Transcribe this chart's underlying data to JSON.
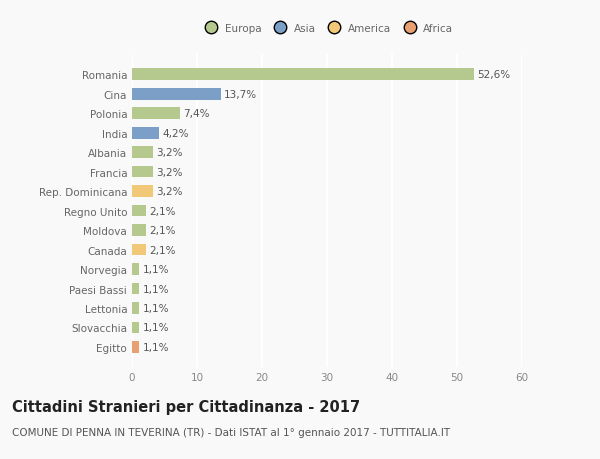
{
  "countries": [
    "Romania",
    "Cina",
    "Polonia",
    "India",
    "Albania",
    "Francia",
    "Rep. Dominicana",
    "Regno Unito",
    "Moldova",
    "Canada",
    "Norvegia",
    "Paesi Bassi",
    "Lettonia",
    "Slovacchia",
    "Egitto"
  ],
  "values": [
    52.6,
    13.7,
    7.4,
    4.2,
    3.2,
    3.2,
    3.2,
    2.1,
    2.1,
    2.1,
    1.1,
    1.1,
    1.1,
    1.1,
    1.1
  ],
  "labels": [
    "52,6%",
    "13,7%",
    "7,4%",
    "4,2%",
    "3,2%",
    "3,2%",
    "3,2%",
    "2,1%",
    "2,1%",
    "2,1%",
    "1,1%",
    "1,1%",
    "1,1%",
    "1,1%",
    "1,1%"
  ],
  "colors": [
    "#b5c98e",
    "#7b9fc7",
    "#b5c98e",
    "#7b9fc7",
    "#b5c98e",
    "#b5c98e",
    "#f0c878",
    "#b5c98e",
    "#b5c98e",
    "#f0c878",
    "#b5c98e",
    "#b5c98e",
    "#b5c98e",
    "#b5c98e",
    "#e8a070"
  ],
  "legend_labels": [
    "Europa",
    "Asia",
    "America",
    "Africa"
  ],
  "legend_colors": [
    "#b5c98e",
    "#7b9fc7",
    "#f0c878",
    "#e8a070"
  ],
  "xlim": [
    0,
    60
  ],
  "xticks": [
    0,
    10,
    20,
    30,
    40,
    50,
    60
  ],
  "title": "Cittadini Stranieri per Cittadinanza - 2017",
  "subtitle": "COMUNE DI PENNA IN TEVERINA (TR) - Dati ISTAT al 1° gennaio 2017 - TUTTITALIA.IT",
  "background_color": "#f9f9f9",
  "grid_color": "#ffffff",
  "bar_height": 0.6,
  "title_fontsize": 10.5,
  "subtitle_fontsize": 7.5,
  "label_fontsize": 7.5,
  "tick_fontsize": 7.5
}
